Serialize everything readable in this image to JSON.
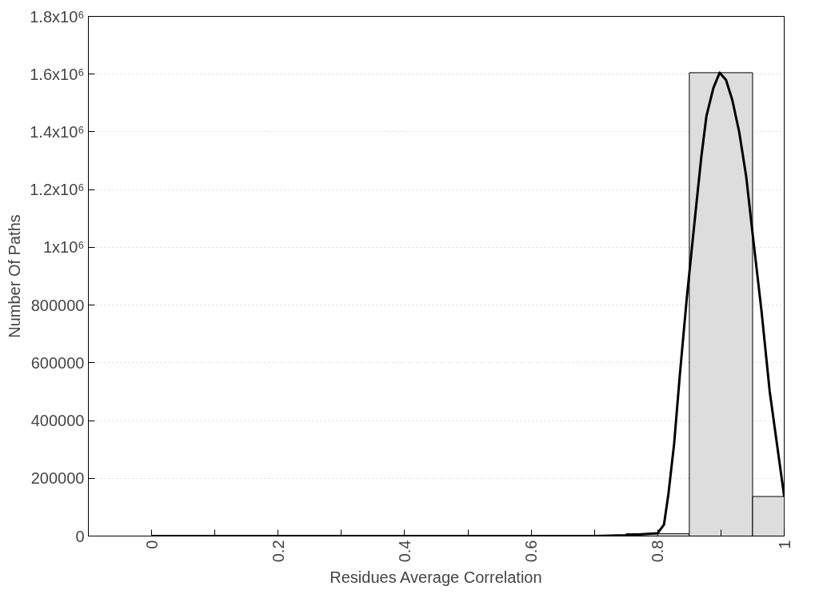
{
  "chart_data": {
    "type": "histogram",
    "xlabel": "Residues Average Correlation",
    "ylabel": "Number Of Paths",
    "series": [
      {
        "color": "#dddddd",
        "bins": [
          0.75,
          0.85,
          0.95,
          1.0
        ],
        "values": [
          8000,
          1605000,
          137000
        ]
      },
      {
        "type": "line",
        "color": "#000000",
        "x": [
          0,
          0.1,
          0.2,
          0.3,
          0.4,
          0.5,
          0.6,
          0.7,
          0.75,
          0.8,
          0.81,
          0.817,
          0.826,
          0.835,
          0.846,
          0.859,
          0.869,
          0.877,
          0.888,
          0.898,
          0.908,
          0.918,
          0.929,
          0.94,
          0.95,
          0.964,
          0.977,
          1.0
        ],
        "values": [
          0,
          0,
          0,
          0,
          0,
          0,
          0,
          0,
          3000,
          10000,
          40000,
          146000,
          320000,
          558000,
          824000,
          1104000,
          1314000,
          1454000,
          1552000,
          1605000,
          1580000,
          1510000,
          1398000,
          1244000,
          1048000,
          782000,
          502000,
          137000
        ]
      }
    ],
    "xlim": [
      -0.1,
      1
    ],
    "ylim": [
      0,
      1800000
    ],
    "xticks": [
      0,
      {
        "value": 0.1,
        "label": null
      },
      0.2,
      {
        "value": 0.3,
        "label": null
      },
      0.4,
      {
        "value": 0.5,
        "label": null
      },
      0.6,
      {
        "value": 0.7,
        "label": null
      },
      0.8,
      {
        "value": 0.9,
        "label": null
      },
      1
    ],
    "yticks": [
      0,
      200000,
      400000,
      600000,
      800000,
      {
        "value": 1000000,
        "label": "1x10⁶"
      },
      {
        "value": 1200000,
        "label": "1.2x10⁶"
      },
      {
        "value": 1400000,
        "label": "1.4x10⁶"
      },
      {
        "value": 1600000,
        "label": "1.6x10⁶"
      },
      {
        "value": 1800000,
        "label": "1.8x10⁶"
      }
    ],
    "grid": "y",
    "marker": "none",
    "line_style": "solid"
  }
}
